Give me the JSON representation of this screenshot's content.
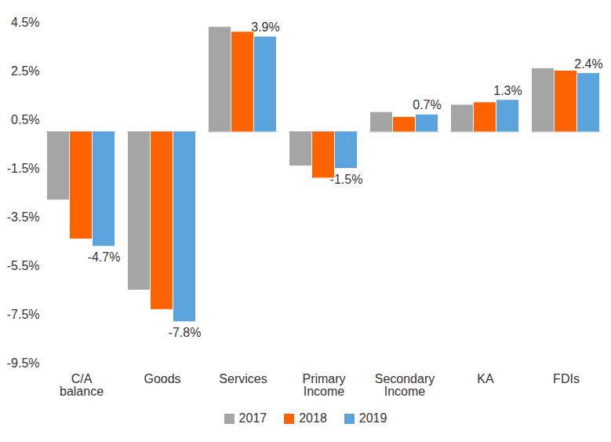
{
  "chart_data": {
    "type": "bar",
    "categories": [
      "C/A\nbalance",
      "Goods",
      "Services",
      "Primary\nIncome",
      "Secondary\nIncome",
      "KA",
      "FDIs"
    ],
    "series": [
      {
        "name": "2017",
        "color": "#a5a5a5",
        "values": [
          -2.8,
          -6.5,
          4.3,
          -1.4,
          0.8,
          1.1,
          2.6
        ]
      },
      {
        "name": "2018",
        "color": "#ff6200",
        "values": [
          -4.4,
          -7.3,
          4.1,
          -1.9,
          0.6,
          1.2,
          2.5
        ]
      },
      {
        "name": "2019",
        "color": "#5ba3dc",
        "values": [
          -4.7,
          -7.8,
          3.9,
          -1.5,
          0.7,
          1.3,
          2.4
        ],
        "data_labels": true,
        "value_labels": [
          "-4.7%",
          "-7.8%",
          "3.9%",
          "-1.5%",
          "0.7%",
          "1.3%",
          "2.4%"
        ]
      }
    ],
    "ylim": [
      -9.5,
      4.5
    ],
    "yticks": [
      {
        "value": 4.5,
        "label": "4.5%"
      },
      {
        "value": 2.5,
        "label": "2.5%"
      },
      {
        "value": 0.5,
        "label": "0.5%"
      },
      {
        "value": -1.5,
        "label": "-1.5%"
      },
      {
        "value": -3.5,
        "label": "-3.5%"
      },
      {
        "value": -5.5,
        "label": "-5.5%"
      },
      {
        "value": -7.5,
        "label": "-7.5%"
      },
      {
        "value": -9.5,
        "label": "-9.5%"
      }
    ],
    "grid": false,
    "legend": "bottom"
  }
}
